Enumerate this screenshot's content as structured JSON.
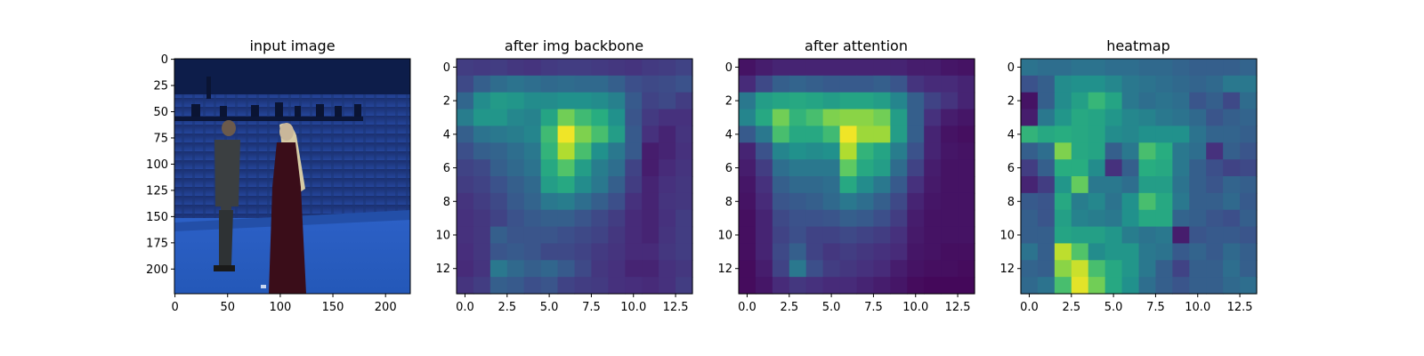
{
  "chart_data": [
    {
      "type": "image",
      "title": "input image",
      "x_ticks": [
        0,
        50,
        100,
        150,
        200
      ],
      "y_ticks": [
        0,
        25,
        50,
        75,
        100,
        125,
        150,
        175,
        200
      ],
      "xlim": [
        -0.5,
        223.5
      ],
      "ylim": [
        223.5,
        -0.5
      ],
      "colors": {
        "backdrop": "#1c3a86",
        "floor": "#2d63cc",
        "rig": "#0e1b44",
        "person_left": "#34383a",
        "person_right": "#3a0c18",
        "hair": "#d6c9a2"
      }
    },
    {
      "type": "heatmap",
      "title": "after img backbone",
      "x_ticks": [
        "0.0",
        "2.5",
        "5.0",
        "7.5",
        "10.0",
        "12.5"
      ],
      "y_ticks": [
        "0",
        "2",
        "4",
        "6",
        "8",
        "10",
        "12"
      ],
      "colormap": "viridis",
      "grid": [
        [
          0.18,
          0.17,
          0.18,
          0.16,
          0.15,
          0.17,
          0.18,
          0.18,
          0.17,
          0.16,
          0.15,
          0.17,
          0.18,
          0.2
        ],
        [
          0.22,
          0.3,
          0.35,
          0.38,
          0.36,
          0.34,
          0.35,
          0.34,
          0.34,
          0.3,
          0.24,
          0.22,
          0.23,
          0.25
        ],
        [
          0.33,
          0.48,
          0.54,
          0.52,
          0.48,
          0.48,
          0.5,
          0.5,
          0.48,
          0.43,
          0.28,
          0.2,
          0.22,
          0.18
        ],
        [
          0.42,
          0.52,
          0.52,
          0.46,
          0.44,
          0.58,
          0.78,
          0.68,
          0.62,
          0.5,
          0.26,
          0.17,
          0.14,
          0.14
        ],
        [
          0.3,
          0.38,
          0.4,
          0.42,
          0.45,
          0.68,
          0.98,
          0.8,
          0.7,
          0.55,
          0.28,
          0.14,
          0.1,
          0.15
        ],
        [
          0.24,
          0.3,
          0.32,
          0.36,
          0.4,
          0.65,
          0.88,
          0.7,
          0.5,
          0.4,
          0.28,
          0.08,
          0.1,
          0.14
        ],
        [
          0.2,
          0.22,
          0.3,
          0.34,
          0.38,
          0.6,
          0.72,
          0.55,
          0.42,
          0.36,
          0.2,
          0.08,
          0.12,
          0.15
        ],
        [
          0.18,
          0.2,
          0.25,
          0.3,
          0.34,
          0.55,
          0.6,
          0.48,
          0.4,
          0.3,
          0.18,
          0.1,
          0.14,
          0.16
        ],
        [
          0.15,
          0.18,
          0.22,
          0.28,
          0.32,
          0.4,
          0.42,
          0.36,
          0.3,
          0.24,
          0.14,
          0.1,
          0.15,
          0.16
        ],
        [
          0.14,
          0.16,
          0.2,
          0.25,
          0.28,
          0.3,
          0.3,
          0.26,
          0.22,
          0.18,
          0.12,
          0.1,
          0.14,
          0.18
        ],
        [
          0.14,
          0.16,
          0.3,
          0.26,
          0.26,
          0.26,
          0.24,
          0.22,
          0.2,
          0.16,
          0.12,
          0.1,
          0.15,
          0.18
        ],
        [
          0.13,
          0.16,
          0.26,
          0.28,
          0.26,
          0.22,
          0.22,
          0.2,
          0.17,
          0.15,
          0.12,
          0.12,
          0.16,
          0.18
        ],
        [
          0.12,
          0.15,
          0.4,
          0.34,
          0.3,
          0.33,
          0.28,
          0.22,
          0.16,
          0.14,
          0.1,
          0.1,
          0.14,
          0.16
        ],
        [
          0.15,
          0.18,
          0.3,
          0.28,
          0.24,
          0.26,
          0.2,
          0.18,
          0.17,
          0.14,
          0.13,
          0.12,
          0.14,
          0.18
        ]
      ]
    },
    {
      "type": "heatmap",
      "title": "after attention",
      "x_ticks": [
        "0.0",
        "2.5",
        "5.0",
        "7.5",
        "10.0",
        "12.5"
      ],
      "y_ticks": [
        "0",
        "2",
        "4",
        "6",
        "8",
        "10",
        "12"
      ],
      "colormap": "viridis",
      "grid": [
        [
          0.05,
          0.08,
          0.1,
          0.1,
          0.1,
          0.1,
          0.1,
          0.1,
          0.1,
          0.1,
          0.08,
          0.08,
          0.06,
          0.05
        ],
        [
          0.12,
          0.22,
          0.3,
          0.32,
          0.3,
          0.28,
          0.28,
          0.28,
          0.3,
          0.26,
          0.15,
          0.12,
          0.12,
          0.1
        ],
        [
          0.4,
          0.55,
          0.58,
          0.6,
          0.58,
          0.55,
          0.58,
          0.58,
          0.55,
          0.45,
          0.3,
          0.2,
          0.15,
          0.1
        ],
        [
          0.45,
          0.6,
          0.78,
          0.65,
          0.7,
          0.8,
          0.82,
          0.82,
          0.78,
          0.55,
          0.3,
          0.14,
          0.08,
          0.06
        ],
        [
          0.28,
          0.4,
          0.7,
          0.6,
          0.6,
          0.68,
          0.98,
          0.85,
          0.85,
          0.55,
          0.3,
          0.1,
          0.05,
          0.04
        ],
        [
          0.1,
          0.25,
          0.45,
          0.5,
          0.48,
          0.5,
          0.88,
          0.65,
          0.58,
          0.42,
          0.25,
          0.1,
          0.06,
          0.05
        ],
        [
          0.08,
          0.18,
          0.36,
          0.4,
          0.4,
          0.4,
          0.75,
          0.6,
          0.55,
          0.35,
          0.2,
          0.08,
          0.05,
          0.05
        ],
        [
          0.06,
          0.14,
          0.3,
          0.34,
          0.34,
          0.36,
          0.6,
          0.48,
          0.4,
          0.28,
          0.14,
          0.07,
          0.05,
          0.05
        ],
        [
          0.05,
          0.12,
          0.26,
          0.28,
          0.3,
          0.34,
          0.4,
          0.36,
          0.3,
          0.22,
          0.1,
          0.06,
          0.05,
          0.05
        ],
        [
          0.04,
          0.1,
          0.22,
          0.25,
          0.25,
          0.26,
          0.3,
          0.28,
          0.24,
          0.18,
          0.08,
          0.05,
          0.05,
          0.05
        ],
        [
          0.04,
          0.1,
          0.2,
          0.24,
          0.2,
          0.2,
          0.22,
          0.2,
          0.18,
          0.14,
          0.07,
          0.05,
          0.05,
          0.05
        ],
        [
          0.04,
          0.1,
          0.22,
          0.3,
          0.2,
          0.16,
          0.18,
          0.16,
          0.14,
          0.12,
          0.06,
          0.05,
          0.04,
          0.04
        ],
        [
          0.03,
          0.08,
          0.2,
          0.4,
          0.24,
          0.18,
          0.16,
          0.14,
          0.12,
          0.08,
          0.05,
          0.04,
          0.04,
          0.03
        ],
        [
          0.03,
          0.06,
          0.12,
          0.16,
          0.14,
          0.12,
          0.12,
          0.1,
          0.08,
          0.06,
          0.03,
          0.02,
          0.02,
          0.02
        ]
      ]
    },
    {
      "type": "heatmap",
      "title": "heatmap",
      "x_ticks": [
        "0.0",
        "2.5",
        "5.0",
        "7.5",
        "10.0",
        "12.5"
      ],
      "y_ticks": [
        "0",
        "2",
        "4",
        "6",
        "8",
        "10",
        "12"
      ],
      "colormap": "viridis",
      "grid": [
        [
          0.38,
          0.36,
          0.36,
          0.38,
          0.38,
          0.36,
          0.36,
          0.34,
          0.34,
          0.32,
          0.3,
          0.3,
          0.3,
          0.32
        ],
        [
          0.25,
          0.3,
          0.48,
          0.5,
          0.5,
          0.46,
          0.4,
          0.38,
          0.36,
          0.34,
          0.32,
          0.34,
          0.4,
          0.4
        ],
        [
          0.05,
          0.3,
          0.48,
          0.56,
          0.66,
          0.58,
          0.4,
          0.36,
          0.38,
          0.36,
          0.26,
          0.3,
          0.22,
          0.35
        ],
        [
          0.08,
          0.4,
          0.52,
          0.6,
          0.58,
          0.52,
          0.46,
          0.44,
          0.4,
          0.38,
          0.34,
          0.26,
          0.3,
          0.32
        ],
        [
          0.65,
          0.6,
          0.62,
          0.6,
          0.58,
          0.48,
          0.46,
          0.5,
          0.5,
          0.5,
          0.38,
          0.32,
          0.32,
          0.3
        ],
        [
          0.3,
          0.36,
          0.8,
          0.6,
          0.58,
          0.3,
          0.4,
          0.7,
          0.62,
          0.4,
          0.36,
          0.14,
          0.3,
          0.26
        ],
        [
          0.18,
          0.3,
          0.62,
          0.62,
          0.48,
          0.14,
          0.3,
          0.62,
          0.6,
          0.4,
          0.3,
          0.24,
          0.2,
          0.22
        ],
        [
          0.1,
          0.18,
          0.52,
          0.76,
          0.4,
          0.4,
          0.36,
          0.55,
          0.55,
          0.38,
          0.3,
          0.26,
          0.32,
          0.3
        ],
        [
          0.28,
          0.26,
          0.6,
          0.42,
          0.46,
          0.38,
          0.5,
          0.7,
          0.6,
          0.4,
          0.3,
          0.3,
          0.34,
          0.28
        ],
        [
          0.3,
          0.26,
          0.56,
          0.44,
          0.42,
          0.4,
          0.5,
          0.6,
          0.6,
          0.32,
          0.3,
          0.26,
          0.24,
          0.3
        ],
        [
          0.3,
          0.3,
          0.58,
          0.56,
          0.56,
          0.52,
          0.42,
          0.38,
          0.4,
          0.08,
          0.26,
          0.28,
          0.28,
          0.26
        ],
        [
          0.38,
          0.3,
          0.9,
          0.72,
          0.48,
          0.52,
          0.52,
          0.4,
          0.38,
          0.28,
          0.32,
          0.28,
          0.34,
          0.3
        ],
        [
          0.32,
          0.3,
          0.82,
          0.92,
          0.7,
          0.6,
          0.52,
          0.4,
          0.3,
          0.2,
          0.3,
          0.3,
          0.36,
          0.3
        ],
        [
          0.34,
          0.38,
          0.7,
          0.96,
          0.78,
          0.6,
          0.5,
          0.36,
          0.3,
          0.26,
          0.3,
          0.3,
          0.34,
          0.36
        ]
      ]
    }
  ]
}
